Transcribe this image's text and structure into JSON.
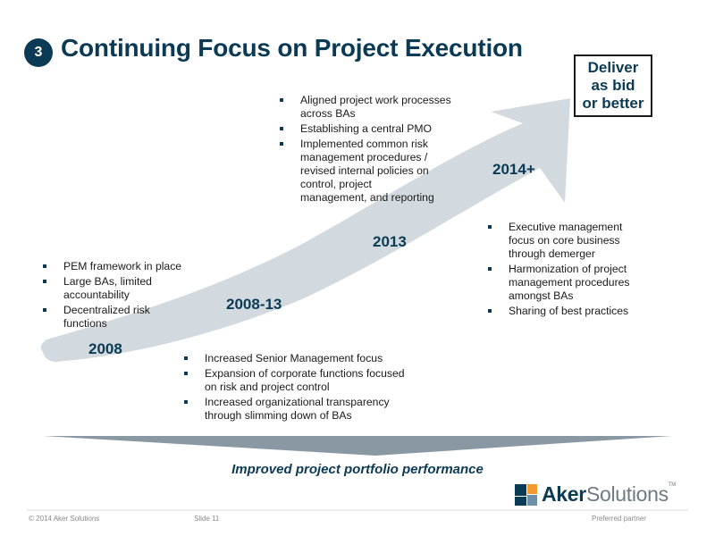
{
  "slide": {
    "badge_number": "3",
    "title": "Continuing Focus on Project Execution",
    "goal_box": {
      "line1": "Deliver",
      "line2": "as bid",
      "line3": "or better"
    }
  },
  "timeline": {
    "arrow_color": "#d3dadf",
    "stages": [
      {
        "year": "2008",
        "bullets": [
          "PEM framework in place",
          "Large BAs, limited accountability",
          "Decentralized risk functions"
        ]
      },
      {
        "year": "2008-13",
        "bullets": [
          "Increased Senior Management focus",
          "Expansion of corporate functions focused on risk and project control",
          "Increased organizational transparency through slimming down of BAs"
        ]
      },
      {
        "year": "2013",
        "bullets": [
          "Aligned project work processes across BAs",
          "Establishing a central PMO",
          "Implemented common risk management procedures / revised internal policies on control, project management, and reporting"
        ]
      },
      {
        "year": "2014+",
        "bullets": [
          "Executive management focus on core business through demerger",
          "Harmonization of project management procedures amongst BAs",
          "Sharing of best practices"
        ]
      }
    ]
  },
  "portfolio_banner": "Improved project portfolio performance",
  "logo": {
    "part1": "Aker",
    "part2": "Solutions",
    "tm": "TM"
  },
  "footer": {
    "copyright": "© 2014 Aker Solutions",
    "slide": "Slide 11",
    "tagline": "Preferred partner"
  }
}
